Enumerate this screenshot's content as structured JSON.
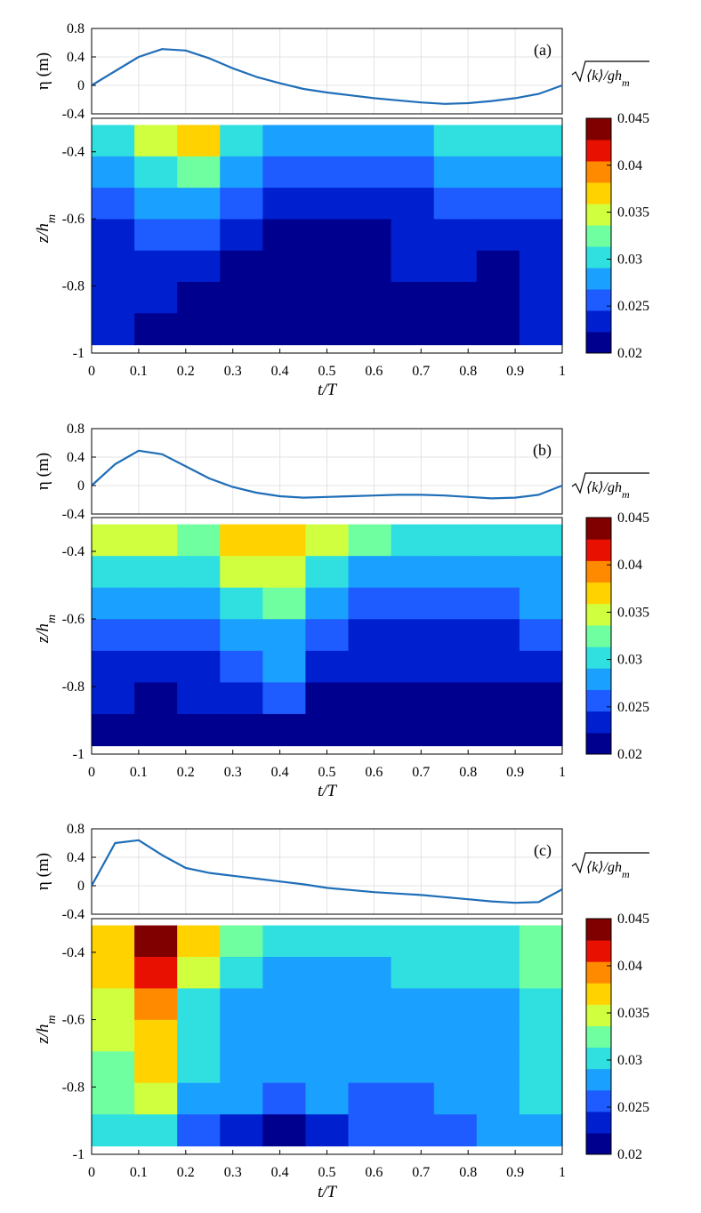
{
  "chart_data": [
    {
      "type": "line",
      "panel": "(a)",
      "ylabel": "η (m)",
      "ylim": [
        -0.4,
        0.8
      ],
      "yticks": [
        "0.8",
        "0.4",
        "0",
        "-0.4"
      ],
      "x": [
        0,
        0.05,
        0.1,
        0.15,
        0.2,
        0.25,
        0.3,
        0.35,
        0.4,
        0.45,
        0.5,
        0.55,
        0.6,
        0.65,
        0.7,
        0.75,
        0.8,
        0.85,
        0.9,
        0.95,
        1.0
      ],
      "y": [
        0.0,
        0.2,
        0.4,
        0.51,
        0.49,
        0.38,
        0.24,
        0.12,
        0.03,
        -0.05,
        -0.1,
        -0.14,
        -0.18,
        -0.21,
        -0.24,
        -0.26,
        -0.25,
        -0.22,
        -0.18,
        -0.12,
        0.0
      ],
      "color": "#1f6eb8"
    },
    {
      "type": "heatmap",
      "panel": "(a)",
      "xlabel": "t/T",
      "ylabel": "z/h_m",
      "xlim": [
        0,
        1
      ],
      "ylim": [
        -1,
        -0.3
      ],
      "xticks": [
        "0",
        "0.1",
        "0.2",
        "0.3",
        "0.4",
        "0.5",
        "0.6",
        "0.7",
        "0.8",
        "0.9",
        "1"
      ],
      "yticks": [
        "-0.4",
        "-0.6",
        "-0.8",
        "-1"
      ],
      "t": [
        0,
        0.1,
        0.2,
        0.3,
        0.4,
        0.5,
        0.6,
        0.7,
        0.8,
        0.9,
        1.0
      ],
      "z": [
        -0.35,
        -0.45,
        -0.55,
        -0.65,
        -0.75,
        -0.85,
        -0.95
      ],
      "values": [
        [
          0.03,
          0.034,
          0.036,
          0.031,
          0.029,
          0.029,
          0.028,
          0.029,
          0.03,
          0.03,
          0.03
        ],
        [
          0.027,
          0.03,
          0.032,
          0.028,
          0.026,
          0.026,
          0.025,
          0.026,
          0.027,
          0.027,
          0.027
        ],
        [
          0.025,
          0.027,
          0.029,
          0.025,
          0.024,
          0.024,
          0.023,
          0.024,
          0.025,
          0.025,
          0.026
        ],
        [
          0.024,
          0.025,
          0.025,
          0.023,
          0.022,
          0.022,
          0.021,
          0.023,
          0.023,
          0.023,
          0.024
        ],
        [
          0.024,
          0.024,
          0.023,
          0.022,
          0.022,
          0.021,
          0.021,
          0.024,
          0.023,
          0.022,
          0.023
        ],
        [
          0.024,
          0.023,
          0.022,
          0.022,
          0.022,
          0.021,
          0.021,
          0.022,
          0.022,
          0.022,
          0.023
        ],
        [
          0.024,
          0.022,
          0.021,
          0.02,
          0.021,
          0.021,
          0.021,
          0.021,
          0.021,
          0.021,
          0.023
        ]
      ]
    },
    {
      "type": "line",
      "panel": "(b)",
      "ylabel": "η (m)",
      "ylim": [
        -0.4,
        0.8
      ],
      "yticks": [
        "0.8",
        "0.4",
        "0",
        "-0.4"
      ],
      "x": [
        0,
        0.05,
        0.1,
        0.15,
        0.2,
        0.25,
        0.3,
        0.35,
        0.4,
        0.45,
        0.5,
        0.55,
        0.6,
        0.65,
        0.7,
        0.75,
        0.8,
        0.85,
        0.9,
        0.95,
        1.0
      ],
      "y": [
        0.0,
        0.3,
        0.49,
        0.44,
        0.27,
        0.1,
        -0.02,
        -0.1,
        -0.15,
        -0.17,
        -0.16,
        -0.15,
        -0.14,
        -0.13,
        -0.13,
        -0.14,
        -0.16,
        -0.18,
        -0.17,
        -0.13,
        0.0
      ],
      "color": "#1f6eb8"
    },
    {
      "type": "heatmap",
      "panel": "(b)",
      "xlabel": "t/T",
      "ylabel": "z/h_m",
      "xlim": [
        0,
        1
      ],
      "ylim": [
        -1,
        -0.3
      ],
      "xticks": [
        "0",
        "0.1",
        "0.2",
        "0.3",
        "0.4",
        "0.5",
        "0.6",
        "0.7",
        "0.8",
        "0.9",
        "1"
      ],
      "yticks": [
        "-0.4",
        "-0.6",
        "-0.8",
        "-1"
      ],
      "t": [
        0,
        0.1,
        0.2,
        0.3,
        0.4,
        0.5,
        0.6,
        0.7,
        0.8,
        0.9,
        1.0
      ],
      "z": [
        -0.35,
        -0.45,
        -0.55,
        -0.65,
        -0.75,
        -0.85,
        -0.95
      ],
      "values": [
        [
          0.034,
          0.035,
          0.033,
          0.036,
          0.037,
          0.034,
          0.033,
          0.031,
          0.03,
          0.03,
          0.031
        ],
        [
          0.03,
          0.031,
          0.03,
          0.034,
          0.035,
          0.031,
          0.029,
          0.028,
          0.028,
          0.028,
          0.029
        ],
        [
          0.027,
          0.028,
          0.027,
          0.031,
          0.032,
          0.027,
          0.026,
          0.026,
          0.026,
          0.026,
          0.027
        ],
        [
          0.025,
          0.025,
          0.025,
          0.027,
          0.028,
          0.025,
          0.024,
          0.024,
          0.024,
          0.024,
          0.025
        ],
        [
          0.024,
          0.023,
          0.024,
          0.025,
          0.027,
          0.024,
          0.023,
          0.023,
          0.023,
          0.023,
          0.023
        ],
        [
          0.023,
          0.022,
          0.023,
          0.023,
          0.025,
          0.022,
          0.022,
          0.022,
          0.022,
          0.022,
          0.022
        ],
        [
          0.022,
          0.021,
          0.022,
          0.022,
          0.021,
          0.021,
          0.021,
          0.021,
          0.021,
          0.021,
          0.021
        ]
      ]
    },
    {
      "type": "line",
      "panel": "(c)",
      "ylabel": "η (m)",
      "ylim": [
        -0.4,
        0.8
      ],
      "yticks": [
        "0.8",
        "0.4",
        "0",
        "-0.4"
      ],
      "x": [
        0,
        0.05,
        0.1,
        0.15,
        0.2,
        0.25,
        0.3,
        0.35,
        0.4,
        0.45,
        0.5,
        0.55,
        0.6,
        0.65,
        0.7,
        0.75,
        0.8,
        0.85,
        0.9,
        0.95,
        1.0
      ],
      "y": [
        0.0,
        0.6,
        0.64,
        0.43,
        0.25,
        0.18,
        0.14,
        0.1,
        0.06,
        0.02,
        -0.03,
        -0.06,
        -0.09,
        -0.11,
        -0.13,
        -0.16,
        -0.19,
        -0.22,
        -0.24,
        -0.23,
        -0.05
      ],
      "color": "#1f6eb8"
    },
    {
      "type": "heatmap",
      "panel": "(c)",
      "xlabel": "t/T",
      "ylabel": "z/h_m",
      "xlim": [
        0,
        1
      ],
      "ylim": [
        -1,
        -0.3
      ],
      "xticks": [
        "0",
        "0.1",
        "0.2",
        "0.3",
        "0.4",
        "0.5",
        "0.6",
        "0.7",
        "0.8",
        "0.9",
        "1"
      ],
      "yticks": [
        "-0.4",
        "-0.6",
        "-0.8",
        "-1"
      ],
      "t": [
        0,
        0.1,
        0.2,
        0.3,
        0.4,
        0.5,
        0.6,
        0.7,
        0.8,
        0.9,
        1.0
      ],
      "z": [
        -0.35,
        -0.45,
        -0.55,
        -0.65,
        -0.75,
        -0.85,
        -0.95
      ],
      "values": [
        [
          0.038,
          0.045,
          0.038,
          0.033,
          0.03,
          0.03,
          0.03,
          0.03,
          0.031,
          0.031,
          0.032
        ],
        [
          0.036,
          0.042,
          0.034,
          0.031,
          0.029,
          0.029,
          0.029,
          0.03,
          0.03,
          0.03,
          0.032
        ],
        [
          0.035,
          0.04,
          0.031,
          0.029,
          0.028,
          0.029,
          0.028,
          0.029,
          0.029,
          0.029,
          0.031
        ],
        [
          0.034,
          0.038,
          0.03,
          0.028,
          0.027,
          0.028,
          0.027,
          0.028,
          0.029,
          0.029,
          0.031
        ],
        [
          0.033,
          0.036,
          0.03,
          0.027,
          0.027,
          0.028,
          0.027,
          0.027,
          0.028,
          0.029,
          0.03
        ],
        [
          0.032,
          0.034,
          0.029,
          0.027,
          0.025,
          0.027,
          0.026,
          0.026,
          0.027,
          0.028,
          0.03
        ],
        [
          0.03,
          0.031,
          0.026,
          0.024,
          0.022,
          0.024,
          0.025,
          0.026,
          0.026,
          0.027,
          0.029
        ]
      ]
    }
  ],
  "colorbar": {
    "title": "√⟨k⟩/gh_m",
    "min": 0.02,
    "max": 0.045,
    "levels": 10,
    "ticks": [
      "0.045",
      "0.04",
      "0.035",
      "0.03",
      "0.025",
      "0.02"
    ],
    "colors": [
      "#00008f",
      "#0020d0",
      "#1e5cff",
      "#1aa0ff",
      "#30e0e0",
      "#70ffa0",
      "#d0ff40",
      "#ffd200",
      "#ff8a00",
      "#e81000",
      "#800000"
    ]
  },
  "panel_labels": [
    "(a)",
    "(b)",
    "(c)"
  ],
  "axis_labels": {
    "eta": "η (m)",
    "z": "z/h",
    "z_sub": "m",
    "t": "t/T",
    "cb_sqrt_k": "⟨k⟩/gh",
    "cb_sub": "m"
  }
}
